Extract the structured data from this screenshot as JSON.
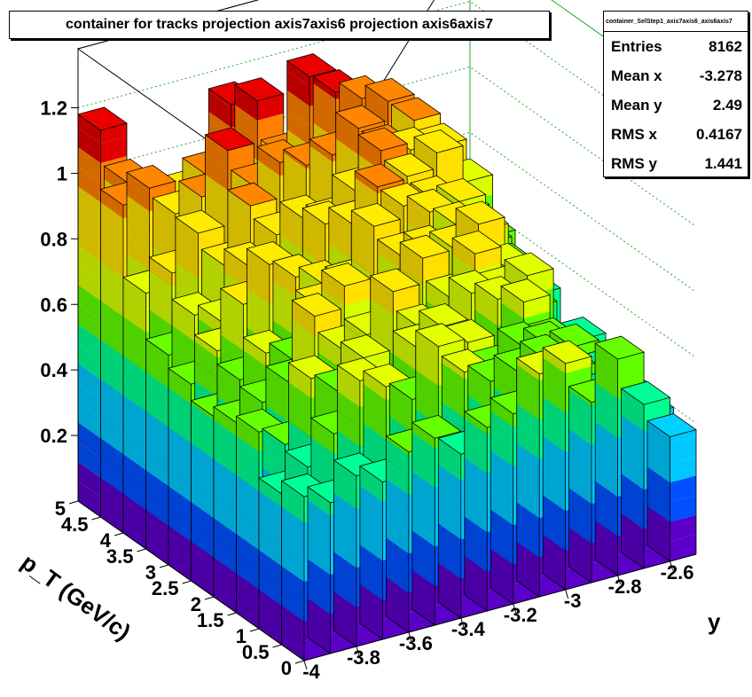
{
  "title": "container for tracks projection axis7axis6 projection axis6axis7",
  "stats": {
    "name": "container_SelStep1_axis7axis6_axis6axis7",
    "rows": [
      {
        "label": "Entries",
        "value": "8162"
      },
      {
        "label": "Mean x",
        "value": "-3.278"
      },
      {
        "label": "Mean y",
        "value": "2.49"
      },
      {
        "label": "RMS x",
        "value": "0.4167"
      },
      {
        "label": "RMS y",
        "value": "1.441"
      }
    ]
  },
  "colors": {
    "frame_grid": "#22aa22",
    "axes": "#000000",
    "palette": [
      "#5a00c8",
      "#0050ff",
      "#00c8ff",
      "#00ff90",
      "#60ff00",
      "#d8ff00",
      "#ffe000",
      "#ff8000",
      "#e00000"
    ]
  },
  "chart_data": {
    "type": "lego",
    "title": "container for tracks projection axis7axis6 projection axis6axis7",
    "xlabel": "y",
    "ylabel": "p_T (GeV/c)",
    "x_ticks": [
      "-4",
      "-3.8",
      "-3.6",
      "-3.4",
      "-3.2",
      "-3",
      "-2.8",
      "-2.6"
    ],
    "y_ticks": [
      "0",
      "0.5",
      "1",
      "1.5",
      "2",
      "2.5",
      "3",
      "3.5",
      "4",
      "4.5",
      "5"
    ],
    "z_ticks": [
      "0.2",
      "0.4",
      "0.6",
      "0.8",
      "1",
      "1.2"
    ],
    "xlim": [
      -4.0,
      -2.5
    ],
    "ylim": [
      0,
      5
    ],
    "zlim": [
      0,
      1.38
    ],
    "x_bin_edges": [
      -4.0,
      -3.9,
      -3.8,
      -3.7,
      -3.6,
      -3.5,
      -3.4,
      -3.3,
      -3.2,
      -3.1,
      -3.0,
      -2.9,
      -2.8,
      -2.7,
      -2.6,
      -2.5
    ],
    "y_bin_edges": [
      0,
      0.5,
      1.0,
      1.5,
      2.0,
      2.5,
      3.0,
      3.5,
      4.0,
      4.5,
      5.0
    ],
    "values": [
      [
        0.5,
        0.46,
        0.52,
        0.48,
        0.55,
        0.57,
        0.5,
        0.56,
        0.58,
        0.68,
        0.69,
        0.55,
        0.66,
        0.5,
        0.38
      ],
      [
        0.46,
        0.52,
        0.6,
        0.74,
        0.7,
        0.64,
        0.78,
        0.68,
        0.63,
        0.64,
        0.66,
        0.6,
        0.5,
        0.42,
        0.4
      ],
      [
        0.6,
        0.54,
        0.72,
        0.66,
        0.74,
        0.6,
        0.73,
        0.77,
        0.7,
        0.6,
        0.65,
        0.63,
        0.6,
        0.5,
        0.42
      ],
      [
        0.58,
        0.62,
        0.66,
        0.84,
        0.72,
        0.74,
        0.85,
        0.72,
        0.66,
        0.78,
        0.74,
        0.71,
        0.57,
        0.47,
        0.4
      ],
      [
        0.55,
        0.64,
        0.7,
        0.66,
        0.8,
        0.84,
        0.64,
        0.78,
        0.86,
        0.72,
        0.83,
        0.7,
        0.72,
        0.47,
        0.48
      ],
      [
        0.6,
        0.68,
        0.8,
        0.9,
        0.84,
        0.8,
        0.78,
        0.93,
        0.82,
        0.82,
        0.8,
        0.85,
        0.7,
        0.55,
        0.4
      ],
      [
        0.64,
        0.74,
        0.7,
        0.85,
        0.8,
        0.72,
        0.91,
        0.89,
        0.98,
        0.9,
        0.86,
        0.8,
        0.76,
        0.63,
        0.52
      ],
      [
        0.78,
        0.82,
        0.92,
        0.8,
        0.96,
        0.85,
        0.88,
        0.85,
        0.92,
        1.02,
        0.92,
        0.83,
        0.8,
        0.65,
        0.55
      ],
      [
        1.0,
        1.03,
        0.93,
        0.96,
        1.08,
        0.95,
        1.0,
        0.97,
        0.98,
        1.04,
        0.96,
        0.93,
        0.9,
        0.7,
        0.6
      ],
      [
        1.18,
        1.0,
        0.85,
        0.92,
        0.96,
        1.15,
        1.14,
        0.95,
        1.17,
        1.1,
        1.06,
        1.03,
        0.95,
        0.85,
        0.72
      ]
    ]
  }
}
